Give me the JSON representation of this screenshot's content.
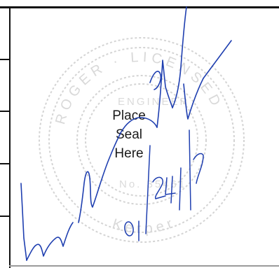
{
  "seal": {
    "placeholder_lines": [
      "Place",
      "Seal",
      "Here"
    ],
    "lettering": [
      "ROGER",
      "LICENSED",
      "ENGINEER",
      "No. 35461",
      "Kerper"
    ],
    "ink_color": "#cfcfcf"
  },
  "signature": {
    "ink_color": "#1f3fb0",
    "date_text": "01/24/17"
  },
  "colors": {
    "rule": "#111111"
  }
}
